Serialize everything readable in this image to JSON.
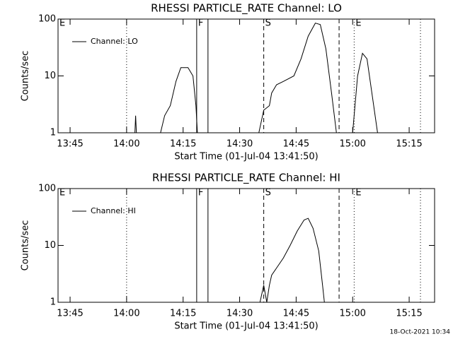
{
  "chart_data": [
    {
      "type": "line",
      "title": "RHESSI PARTICLE_RATE Channel: LO",
      "x_label": "Start Time (01-Jul-04 13:41:50)",
      "y_label": "Counts/sec",
      "log_y": true,
      "xlim": [
        821.8,
        921.75
      ],
      "ylim": [
        1,
        100
      ],
      "yticks": [
        1,
        10,
        100
      ],
      "xticks": [
        {
          "value": 825,
          "label": "13:45"
        },
        {
          "value": 840,
          "label": "14:00"
        },
        {
          "value": 855,
          "label": "14:15"
        },
        {
          "value": 870,
          "label": "14:30"
        },
        {
          "value": 885,
          "label": "14:45"
        },
        {
          "value": 900,
          "label": "15:00"
        },
        {
          "value": 915,
          "label": "15:15"
        }
      ],
      "legend": "top-left",
      "series": [
        {
          "name": "Channel: LO",
          "color": "#000000",
          "x": [
            842.2,
            842.4,
            842.6,
            845,
            849.0,
            850.1,
            851.6,
            853.1,
            854.4,
            856.3,
            857.6,
            858.4,
            858.8,
            865,
            875.1,
            876.4,
            877.9,
            878.5,
            879.8,
            881.6,
            884.4,
            886.3,
            888.2,
            890.1,
            891.4,
            892.9,
            894.4,
            895.7,
            898,
            900.0,
            901.3,
            902.6,
            903.8,
            905.1,
            906.6
          ],
          "values": [
            1,
            2,
            1,
            null,
            1,
            2,
            3,
            8,
            14,
            14,
            10,
            3,
            1,
            null,
            1,
            2.5,
            3,
            5,
            7,
            8,
            10,
            20,
            50,
            85,
            80,
            30,
            5,
            1,
            null,
            1,
            10,
            25,
            20,
            5,
            1
          ]
        }
      ],
      "markers": [
        {
          "x": 821.8,
          "label": "E"
        },
        {
          "x": 840,
          "style": "dotted"
        },
        {
          "x": 858.6,
          "style": "solid",
          "label": "F"
        },
        {
          "x": 861.6,
          "style": "solid"
        },
        {
          "x": 876.4,
          "style": "dashed",
          "label": "S"
        },
        {
          "x": 896.4,
          "style": "dashed"
        },
        {
          "x": 900.4,
          "style": "dotted",
          "label": "E"
        },
        {
          "x": 918,
          "style": "dotted"
        }
      ]
    },
    {
      "type": "line",
      "title": "RHESSI PARTICLE_RATE Channel: HI",
      "x_label": "Start Time (01-Jul-04 13:41:50)",
      "y_label": "Counts/sec",
      "log_y": true,
      "xlim": [
        821.8,
        921.75
      ],
      "ylim": [
        1,
        100
      ],
      "yticks": [
        1,
        10,
        100
      ],
      "xticks": [
        {
          "value": 825,
          "label": "13:45"
        },
        {
          "value": 840,
          "label": "14:00"
        },
        {
          "value": 855,
          "label": "14:15"
        },
        {
          "value": 870,
          "label": "14:30"
        },
        {
          "value": 885,
          "label": "14:45"
        },
        {
          "value": 900,
          "label": "15:00"
        },
        {
          "value": 915,
          "label": "15:15"
        }
      ],
      "legend": "top-left",
      "series": [
        {
          "name": "Channel: HI",
          "color": "#000000",
          "x": [
            875.4,
            876.4,
            877.2,
            877.9,
            878.5,
            879.8,
            881.6,
            883.4,
            885.3,
            887.1,
            888.2,
            889.5,
            891.0,
            892.0,
            892.5
          ],
          "values": [
            1,
            2,
            1,
            2,
            3,
            4,
            6,
            10,
            18,
            28,
            30,
            20,
            8,
            2,
            1
          ]
        }
      ],
      "markers": [
        {
          "x": 821.8,
          "label": "E"
        },
        {
          "x": 840,
          "style": "dotted"
        },
        {
          "x": 858.6,
          "style": "solid",
          "label": "F"
        },
        {
          "x": 861.6,
          "style": "solid"
        },
        {
          "x": 876.4,
          "style": "dashed",
          "label": "S"
        },
        {
          "x": 896.4,
          "style": "dashed"
        },
        {
          "x": 900.4,
          "style": "dotted",
          "label": "E"
        },
        {
          "x": 918,
          "style": "dotted"
        }
      ]
    }
  ],
  "footer": "18-Oct-2021 10:34"
}
